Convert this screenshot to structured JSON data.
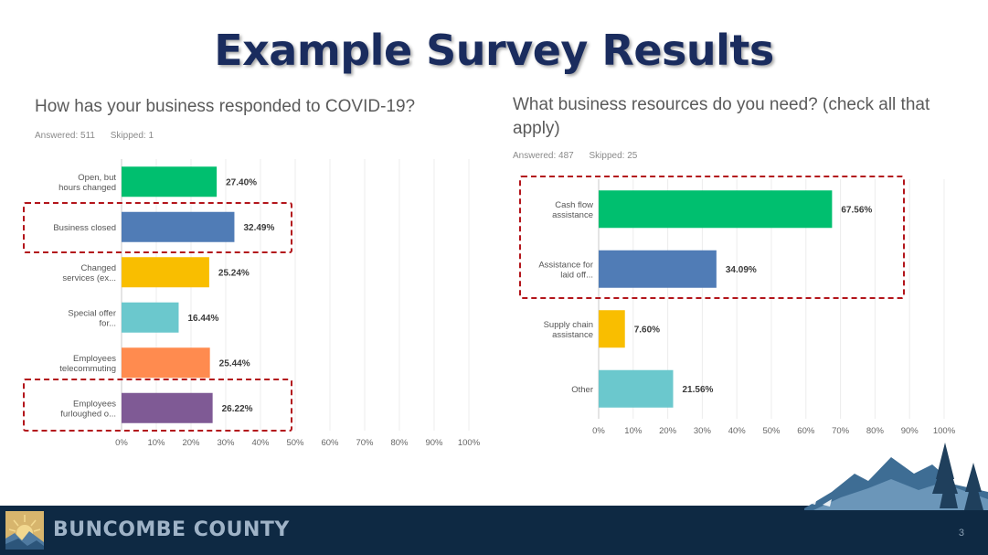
{
  "slide": {
    "title": "Example Survey Results",
    "page_number": "3"
  },
  "footer": {
    "brand": "BUNCOMBE COUNTY"
  },
  "chart_data": [
    {
      "type": "bar",
      "orientation": "horizontal",
      "title": "How has your business responded to COVID-19?",
      "answered": "Answered: 511",
      "skipped": "Skipped: 1",
      "categories": [
        [
          "Open, but",
          "hours changed"
        ],
        [
          "Business closed"
        ],
        [
          "Changed",
          "services (ex..."
        ],
        [
          "Special offer",
          "for..."
        ],
        [
          "Employees",
          "telecommuting"
        ],
        [
          "Employees",
          "furloughed o..."
        ]
      ],
      "values": [
        27.4,
        32.49,
        25.24,
        16.44,
        25.44,
        26.22
      ],
      "value_labels": [
        "27.40%",
        "32.49%",
        "25.24%",
        "16.44%",
        "25.44%",
        "26.22%"
      ],
      "colors": [
        "#00bf6f",
        "#507cb6",
        "#f9be00",
        "#6bc8cd",
        "#ff8b4f",
        "#7f5a95"
      ],
      "xlim": [
        0,
        100
      ],
      "ticks": [
        "0%",
        "10%",
        "20%",
        "30%",
        "40%",
        "50%",
        "60%",
        "70%",
        "80%",
        "90%",
        "100%"
      ],
      "grid": true,
      "highlighted": [
        1,
        5
      ]
    },
    {
      "type": "bar",
      "orientation": "horizontal",
      "title": "What business resources do you need? (check all that apply)",
      "answered": "Answered: 487",
      "skipped": "Skipped: 25",
      "categories": [
        [
          "Cash flow",
          "assistance"
        ],
        [
          "Assistance for",
          "laid off..."
        ],
        [
          "Supply chain",
          "assistance"
        ],
        [
          "Other"
        ]
      ],
      "values": [
        67.56,
        34.09,
        7.6,
        21.56
      ],
      "value_labels": [
        "67.56%",
        "34.09%",
        "7.60%",
        "21.56%"
      ],
      "colors": [
        "#00bf6f",
        "#507cb6",
        "#f9be00",
        "#6bc8cd"
      ],
      "xlim": [
        0,
        100
      ],
      "ticks": [
        "0%",
        "10%",
        "20%",
        "30%",
        "40%",
        "50%",
        "60%",
        "70%",
        "80%",
        "90%",
        "100%"
      ],
      "grid": true,
      "highlighted": [
        0,
        1
      ]
    }
  ]
}
